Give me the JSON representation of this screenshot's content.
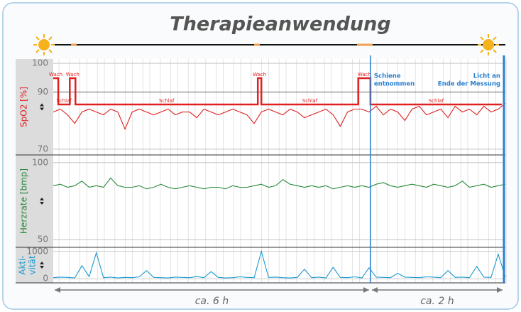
{
  "chart_data": {
    "type": "line",
    "title": "Therapieanwendung",
    "panels": [
      {
        "name": "SpO2 [%]",
        "color": "#e02020",
        "ylim": [
          68,
          101.5
        ],
        "yticks": [
          100,
          90,
          70
        ],
        "values": [
          83,
          84,
          82,
          79,
          83,
          84,
          83,
          82,
          84,
          83,
          77,
          83,
          84,
          83,
          82,
          83,
          84,
          82,
          83,
          83,
          81,
          84,
          83,
          82,
          83,
          84,
          83,
          82,
          79,
          83,
          84,
          83,
          82,
          84,
          83,
          81,
          82,
          83,
          84,
          82,
          78,
          83,
          84,
          84,
          83,
          85,
          82,
          84,
          83,
          80,
          84,
          85,
          82,
          83,
          84,
          81,
          85,
          83,
          84,
          82,
          85,
          83,
          84,
          86
        ]
      },
      {
        "name": "Herzrate [bmp]",
        "color": "#2a8a3a",
        "ylim": [
          45,
          105
        ],
        "yticks": [
          100,
          50
        ],
        "values": [
          85,
          86,
          84,
          85,
          88,
          84,
          85,
          84,
          90,
          85,
          84,
          84,
          85,
          83,
          84,
          86,
          84,
          83,
          84,
          85,
          84,
          83,
          84,
          84,
          83,
          85,
          84,
          84,
          85,
          86,
          84,
          85,
          89,
          86,
          85,
          84,
          85,
          84,
          85,
          83,
          84,
          85,
          84,
          85,
          84,
          86,
          87,
          85,
          84,
          85,
          86,
          85,
          84,
          86,
          85,
          84,
          85,
          88,
          84,
          85,
          86,
          84,
          85,
          86
        ]
      },
      {
        "name": "Akti-vität",
        "name_lines": [
          "Akti-",
          "vität"
        ],
        "color": "#1a9ad0",
        "ylim": [
          -150,
          1150
        ],
        "yticks": [
          1000,
          0
        ],
        "values": [
          40,
          60,
          50,
          30,
          480,
          80,
          950,
          40,
          60,
          30,
          50,
          40,
          70,
          300,
          50,
          40,
          30,
          60,
          50,
          40,
          80,
          40,
          260,
          50,
          30,
          40,
          70,
          50,
          40,
          1000,
          50,
          60,
          40,
          30,
          50,
          350,
          40,
          60,
          30,
          420,
          50,
          40,
          70,
          30,
          400,
          60,
          50,
          40,
          200,
          60,
          50,
          40,
          70,
          60,
          40,
          300,
          50,
          60,
          40,
          450,
          60,
          50,
          900,
          60
        ]
      }
    ],
    "stages": [
      "Schlaf",
      "Wach"
    ],
    "hypnogram": [
      {
        "label": "Wach",
        "start": 0,
        "end": 0.7
      },
      {
        "label": "Schlaf",
        "start": 0.7,
        "end": 2.3
      },
      {
        "label": "Wach",
        "start": 2.3,
        "end": 3.1
      },
      {
        "label": "Schlaf",
        "start": 3.1,
        "end": 28.5
      },
      {
        "label": "Wach",
        "start": 28.5,
        "end": 29.0
      },
      {
        "label": "Schlaf",
        "start": 29.0,
        "end": 42.5
      },
      {
        "label": "Wach",
        "start": 42.5,
        "end": 44.2
      },
      {
        "label": "Schlaf",
        "start": 44.2,
        "end": 62.5
      }
    ],
    "events": [
      {
        "x": 44.2,
        "label_lines": [
          "Schiene",
          "entnommen"
        ]
      },
      {
        "x": 62.8,
        "label_lines": [
          "Licht an",
          "Ende der Messung"
        ]
      }
    ],
    "durations": [
      {
        "start": 0,
        "end": 44.2,
        "label": "ca. 6 h"
      },
      {
        "start": 44.2,
        "end": 62.8,
        "label": "ca. 2 h"
      }
    ]
  }
}
